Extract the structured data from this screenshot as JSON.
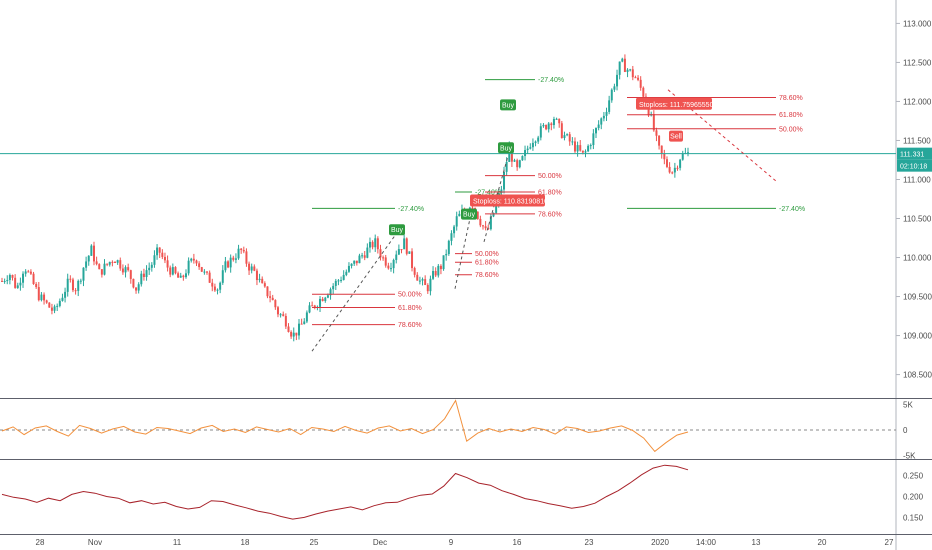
{
  "chart_data": {
    "type": "candlestick",
    "price_axis": {
      "ticks": [
        "113.000",
        "112.500",
        "112.000",
        "111.500",
        "111.000",
        "110.500",
        "110.000",
        "109.500",
        "109.000",
        "108.500"
      ],
      "ylim": [
        108.2,
        113.3
      ]
    },
    "current_price": {
      "value": 111.331,
      "label": "111.331",
      "countdown": "02:10:18"
    },
    "time_axis": {
      "labels": [
        "28",
        "Nov",
        "11",
        "18",
        "25",
        "Dec",
        "9",
        "16",
        "23",
        "2020",
        "14:00",
        "13",
        "20",
        "27"
      ]
    },
    "candles_anchor_close": [
      109.7,
      109.8,
      109.6,
      109.9,
      109.7,
      109.5,
      109.4,
      109.3,
      109.5,
      109.7,
      109.6,
      109.9,
      110.1,
      109.8,
      109.9,
      110.0,
      109.9,
      109.8,
      109.6,
      109.8,
      109.9,
      110.1,
      109.9,
      109.8,
      109.7,
      109.9,
      110.0,
      109.8,
      109.7,
      109.6,
      109.9,
      110.0,
      110.1,
      109.9,
      109.8,
      109.6,
      109.5,
      109.3,
      109.2,
      109.0,
      109.1,
      109.3,
      109.4,
      109.5,
      109.6,
      109.7,
      109.8,
      109.9,
      110.0,
      110.1,
      110.2,
      110.0,
      109.9,
      110.1,
      110.2,
      109.9,
      109.7,
      109.6,
      109.8,
      109.9,
      110.2,
      110.5,
      110.6,
      110.7,
      110.5,
      110.3,
      110.6,
      110.9,
      111.4,
      111.1,
      111.3,
      111.5,
      111.6,
      111.7,
      111.8,
      111.6,
      111.5,
      111.4,
      111.3,
      111.5,
      111.7,
      111.9,
      112.2,
      112.5,
      112.4,
      112.3,
      112.1,
      111.8,
      111.4,
      111.2,
      111.1,
      111.3,
      111.33
    ],
    "fib_sets": [
      {
        "levels": [
          "-27.40%",
          "50.00%",
          "61.80%",
          "78.60%"
        ],
        "signal": "Buy"
      },
      {
        "levels": [
          "-27.40%",
          "50.00%",
          "61.80%",
          "78.60%"
        ],
        "signal": "Buy"
      },
      {
        "levels": [
          "-27.40%",
          "50.00%",
          "61.80%",
          "78.60%"
        ],
        "signal": "Buy",
        "stoploss": "Stoploss: 110.8319081058"
      },
      {
        "levels": [
          "-27.40%",
          "50.00%",
          "61.80%",
          "78.60%"
        ],
        "signal": "Sell",
        "stoploss": "Stoploss: 111.7596555089"
      }
    ],
    "oscillator_1": {
      "ticks": [
        "5K",
        "0",
        "-5K"
      ],
      "ylim": [
        -5500,
        5500
      ],
      "values": [
        -200,
        600,
        -900,
        400,
        800,
        -300,
        -1200,
        900,
        300,
        -600,
        200,
        700,
        -400,
        -800,
        500,
        300,
        -200,
        -700,
        400,
        900,
        -300,
        200,
        -500,
        600,
        100,
        -400,
        300,
        -900,
        500,
        200,
        -300,
        700,
        -100,
        -600,
        400,
        800,
        -200,
        300,
        -700,
        100,
        2200,
        5800,
        -2200,
        -600,
        300,
        -400,
        200,
        -300,
        500,
        100,
        -800,
        600,
        300,
        -500,
        -200,
        400,
        800,
        -100,
        -1600,
        -4200,
        -2500,
        -1000,
        -400
      ]
    },
    "oscillator_2": {
      "ticks": [
        "0.250",
        "0.200",
        "0.150"
      ],
      "ylim": [
        0.115,
        0.285
      ],
      "values": [
        0.205,
        0.198,
        0.194,
        0.186,
        0.196,
        0.19,
        0.205,
        0.212,
        0.208,
        0.2,
        0.196,
        0.185,
        0.19,
        0.182,
        0.186,
        0.176,
        0.17,
        0.174,
        0.19,
        0.188,
        0.18,
        0.173,
        0.165,
        0.16,
        0.152,
        0.146,
        0.15,
        0.158,
        0.165,
        0.17,
        0.175,
        0.168,
        0.178,
        0.185,
        0.186,
        0.196,
        0.203,
        0.206,
        0.225,
        0.255,
        0.245,
        0.232,
        0.227,
        0.214,
        0.205,
        0.195,
        0.19,
        0.183,
        0.178,
        0.172,
        0.176,
        0.184,
        0.2,
        0.214,
        0.232,
        0.252,
        0.268,
        0.275,
        0.272,
        0.264
      ]
    },
    "colors": {
      "up": "#26a69a",
      "down": "#ef5350",
      "fib_green": "#2e9b3f",
      "fib_red": "#d9363e",
      "price_line": "#26a69a",
      "osc1": "#f2913d",
      "osc2": "#a8232b"
    }
  }
}
